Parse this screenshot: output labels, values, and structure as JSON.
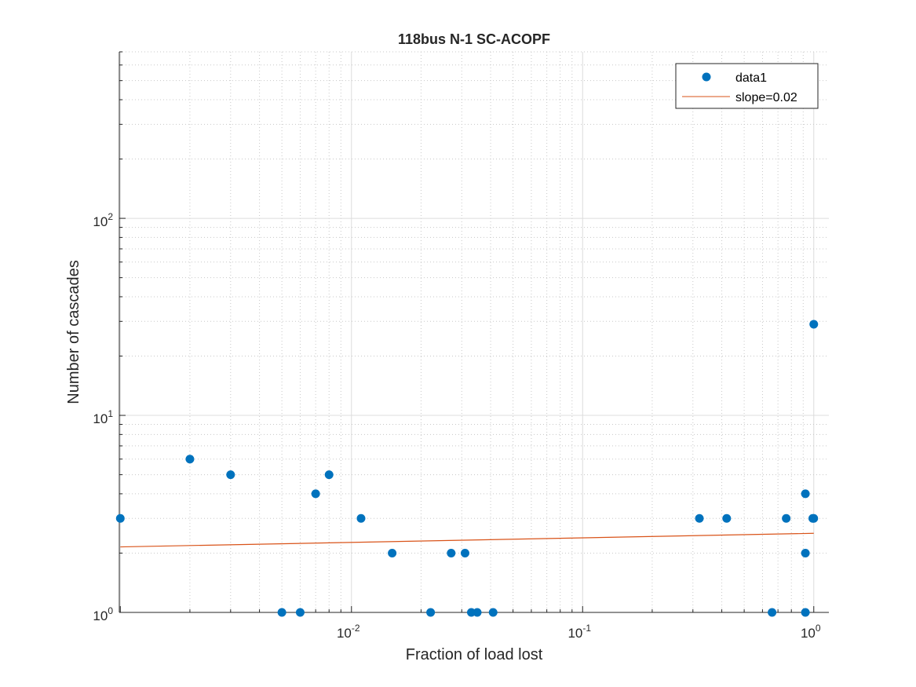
{
  "chart_data": {
    "type": "scatter",
    "title": "118bus N-1 SC-ACOPF",
    "xlabel": "Fraction of load lost",
    "ylabel": "Number of cascades",
    "xscale": "log",
    "yscale": "log",
    "xlim": [
      0.00099,
      1.05
    ],
    "ylim": [
      1,
      700
    ],
    "x_ticks": [
      {
        "value": 0.01,
        "base": "10",
        "exp": "-2"
      },
      {
        "value": 0.1,
        "base": "10",
        "exp": "-1"
      },
      {
        "value": 1,
        "base": "10",
        "exp": "0"
      }
    ],
    "y_ticks": [
      {
        "value": 1,
        "base": "10",
        "exp": "0"
      },
      {
        "value": 10,
        "base": "10",
        "exp": "1"
      },
      {
        "value": 100,
        "base": "10",
        "exp": "2"
      }
    ],
    "grid": true,
    "legend_position": "top-right",
    "marker_color": "#0072BD",
    "line_color": "#D95319",
    "series": [
      {
        "name": "data1",
        "kind": "scatter",
        "points": [
          [
            0.001,
            3
          ],
          [
            0.002,
            6
          ],
          [
            0.003,
            5
          ],
          [
            0.005,
            1
          ],
          [
            0.006,
            1
          ],
          [
            0.007,
            4
          ],
          [
            0.008,
            5
          ],
          [
            0.011,
            3
          ],
          [
            0.015,
            2
          ],
          [
            0.022,
            1
          ],
          [
            0.027,
            2
          ],
          [
            0.031,
            2
          ],
          [
            0.033,
            1
          ],
          [
            0.035,
            1
          ],
          [
            0.041,
            1
          ],
          [
            0.32,
            3
          ],
          [
            0.42,
            3
          ],
          [
            0.66,
            1
          ],
          [
            0.76,
            3
          ],
          [
            0.92,
            4
          ],
          [
            0.92,
            2
          ],
          [
            0.92,
            1
          ],
          [
            0.99,
            3
          ],
          [
            1.0,
            3
          ],
          [
            1.0,
            29
          ]
        ]
      },
      {
        "name": "slope=0.02",
        "kind": "line",
        "points": [
          [
            0.001,
            2.15
          ],
          [
            1.0,
            2.52
          ]
        ]
      }
    ]
  }
}
